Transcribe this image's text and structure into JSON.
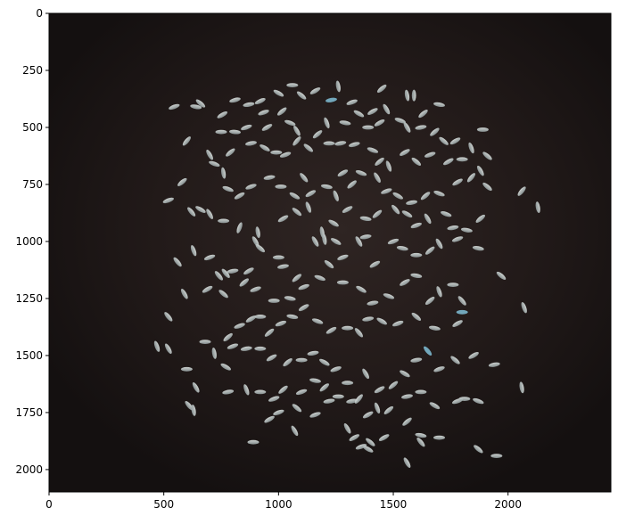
{
  "figure": {
    "kind": "image display with pixel-coordinate axes",
    "image_subject": "scattered rice grains on a dark background",
    "image_extent": {
      "x": [
        0,
        2448
      ],
      "y": [
        2098,
        0
      ]
    }
  },
  "chart_data": {
    "type": "image",
    "title": "",
    "xlabel": "",
    "ylabel": "",
    "xlim": [
      0,
      2448
    ],
    "ylim": [
      2098,
      0
    ],
    "x_ticks": [
      0,
      500,
      1000,
      1500,
      2000
    ],
    "x_tick_labels": [
      "0",
      "500",
      "1000",
      "1500",
      "2000"
    ],
    "y_ticks": [
      0,
      250,
      500,
      750,
      1000,
      1250,
      1500,
      1750,
      2000
    ],
    "y_tick_labels": [
      "0",
      "250",
      "500",
      "750",
      "1000",
      "1250",
      "1500",
      "1750",
      "2000"
    ],
    "grid": false,
    "legend": "none"
  },
  "colors": {
    "background_dark": "#1a1312",
    "background_glow": "#2e2422",
    "grain": "#bfc6c4",
    "grain_shadow": "#7e8a8c",
    "blue_grain": "#7ab3c9",
    "axis": "#000000"
  }
}
